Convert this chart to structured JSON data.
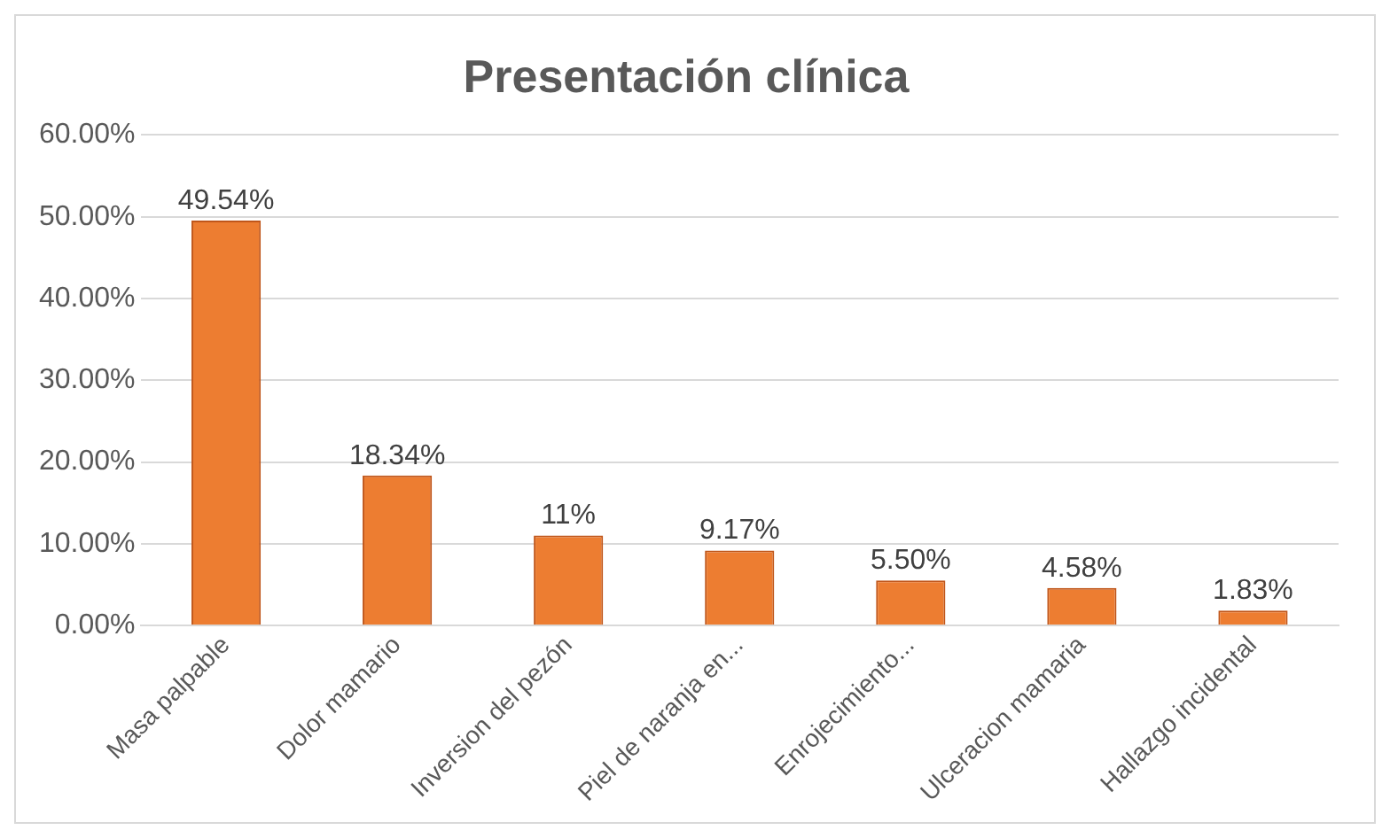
{
  "chart_data": {
    "type": "bar",
    "title": "Presentación clínica",
    "categories": [
      "Masa palpable",
      "Dolor mamario",
      "Inversion del pezón",
      "Piel de naranja en...",
      "Enrojecimiento...",
      "Ulceracion mamaria",
      "Hallazgo incidental"
    ],
    "values": [
      49.54,
      18.34,
      11,
      9.17,
      5.5,
      4.58,
      1.83
    ],
    "value_labels": [
      "49.54%",
      "18.34%",
      "11%",
      "9.17%",
      "5.50%",
      "4.58%",
      "1.83%"
    ],
    "color": "#ed7d31",
    "ylim": [
      0,
      60
    ],
    "yticks": [
      {
        "value": 0,
        "label": "0.00%"
      },
      {
        "value": 10,
        "label": "10.00%"
      },
      {
        "value": 20,
        "label": "20.00%"
      },
      {
        "value": 30,
        "label": "30.00%"
      },
      {
        "value": 40,
        "label": "40.00%"
      },
      {
        "value": 50,
        "label": "50.00%"
      },
      {
        "value": 60,
        "label": "60.00%"
      }
    ],
    "grid": "y"
  }
}
